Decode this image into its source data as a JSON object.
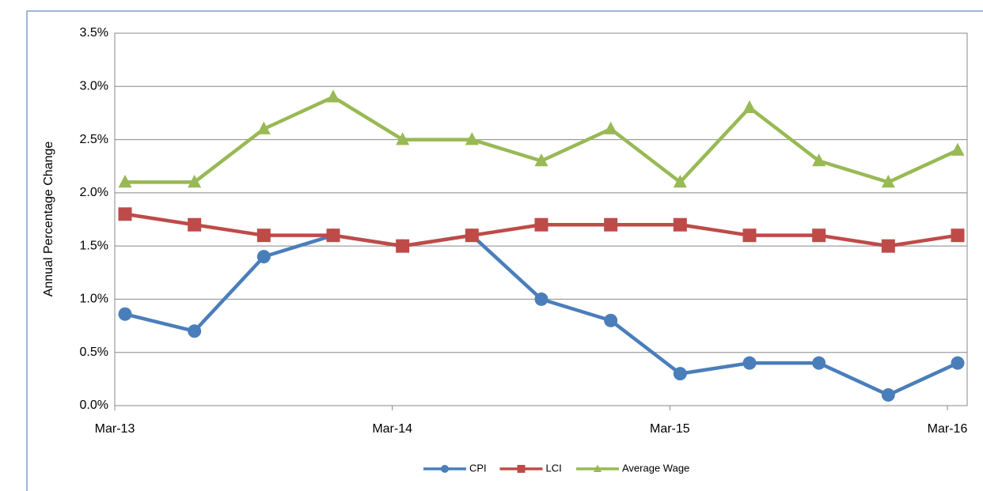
{
  "chart_data": {
    "type": "line",
    "ylabel": "Annual Percentage Change",
    "categories": [
      "Mar-13",
      null,
      null,
      null,
      "Mar-14",
      null,
      null,
      null,
      "Mar-15",
      null,
      null,
      null,
      "Mar-16"
    ],
    "series": [
      {
        "name": "CPI",
        "color": "#4a7ebb",
        "marker": "circle",
        "values": [
          0.86,
          0.7,
          1.4,
          1.6,
          1.5,
          1.6,
          1.0,
          0.8,
          0.3,
          0.4,
          0.4,
          0.1,
          0.4
        ]
      },
      {
        "name": "LCI",
        "color": "#be4b48",
        "marker": "square",
        "values": [
          1.8,
          1.7,
          1.6,
          1.6,
          1.5,
          1.6,
          1.7,
          1.7,
          1.7,
          1.6,
          1.6,
          1.5,
          1.6
        ]
      },
      {
        "name": "Average Wage",
        "color": "#98b954",
        "marker": "triangle",
        "values": [
          2.1,
          2.1,
          2.6,
          2.9,
          2.5,
          2.5,
          2.3,
          2.6,
          2.1,
          2.8,
          2.3,
          2.1,
          2.4
        ]
      }
    ],
    "ylim": [
      0,
      3.5
    ],
    "yticks": [
      {
        "value": 0,
        "label": "0.0%"
      },
      {
        "value": 0.5,
        "label": "0.5%"
      },
      {
        "value": 1.0,
        "label": "1.0%"
      },
      {
        "value": 1.5,
        "label": "1.5%"
      },
      {
        "value": 2.0,
        "label": "2.0%"
      },
      {
        "value": 2.5,
        "label": "2.5%"
      },
      {
        "value": 3.0,
        "label": "3.0%"
      },
      {
        "value": 3.5,
        "label": "3.5%"
      }
    ],
    "grid": true,
    "legend": "bottom"
  }
}
